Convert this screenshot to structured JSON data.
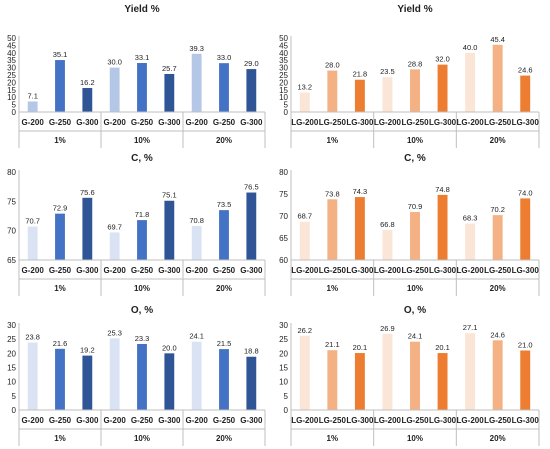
{
  "chart_data": [
    {
      "type": "bar",
      "title": "Yield %",
      "categories": [
        "G-200",
        "G-250",
        "G-300",
        "G-200",
        "G-250",
        "G-300",
        "G-200",
        "G-250",
        "G-300"
      ],
      "groups": [
        "1%",
        "10%",
        "20%"
      ],
      "values": [
        7.1,
        35.1,
        16.2,
        30.0,
        33.1,
        25.7,
        39.3,
        33.0,
        29.0
      ],
      "labels": [
        "7.1",
        "35.1",
        "16.2",
        "30.0",
        "33.1",
        "25.7",
        "39.3",
        "33.0",
        "29.0"
      ],
      "ylim": [
        0,
        50
      ],
      "yticks": [
        "0",
        "5",
        "10",
        "15",
        "20",
        "25",
        "30",
        "35",
        "40",
        "45",
        "50"
      ],
      "colors": [
        "#b4c7e7",
        "#4472c4",
        "#2f5597"
      ],
      "grid": false
    },
    {
      "type": "bar",
      "title": "Yield %",
      "categories": [
        "LG-200",
        "LG-250",
        "LG-300",
        "LG-200",
        "LG-250",
        "LG-300",
        "LG-200",
        "LG-250",
        "LG-300"
      ],
      "groups": [
        "1%",
        "10%",
        "20%"
      ],
      "values": [
        13.2,
        28.0,
        21.8,
        23.5,
        28.8,
        32.0,
        40.0,
        45.4,
        24.6
      ],
      "labels": [
        "13.2",
        "28.0",
        "21.8",
        "23.5",
        "28.8",
        "32.0",
        "40.0",
        "45.4",
        "24.6"
      ],
      "ylim": [
        0,
        50
      ],
      "yticks": [
        "0",
        "5",
        "10",
        "15",
        "20",
        "25",
        "30",
        "35",
        "40",
        "45",
        "50"
      ],
      "colors": [
        "#fbe5d6",
        "#f4b183",
        "#ed7d31"
      ],
      "grid": false
    },
    {
      "type": "bar",
      "title": "C, %",
      "categories": [
        "G-200",
        "G-250",
        "G-300",
        "G-200",
        "G-250",
        "G-300",
        "G-200",
        "G-250",
        "G-300"
      ],
      "groups": [
        "1%",
        "10%",
        "20%"
      ],
      "values": [
        70.7,
        72.9,
        75.6,
        69.7,
        71.8,
        75.1,
        70.8,
        73.5,
        76.5
      ],
      "labels": [
        "70.7",
        "72.9",
        "75.6",
        "69.7",
        "71.8",
        "75.1",
        "70.8",
        "73.5",
        "76.5"
      ],
      "ylim": [
        65,
        80
      ],
      "yticks": [
        "65",
        "70",
        "75",
        "80"
      ],
      "colors": [
        "#dae3f3",
        "#4472c4",
        "#2f5597"
      ],
      "grid": false
    },
    {
      "type": "bar",
      "title": "C, %",
      "categories": [
        "LG-200",
        "LG-250",
        "LG-300",
        "LG-200",
        "LG-250",
        "LG-300",
        "LG-200",
        "LG-250",
        "LG-300"
      ],
      "groups": [
        "1%",
        "10%",
        "20%"
      ],
      "values": [
        68.7,
        73.8,
        74.3,
        66.8,
        70.9,
        74.8,
        68.3,
        70.2,
        74.0
      ],
      "labels": [
        "68.7",
        "73.8",
        "74.3",
        "66.8",
        "70.9",
        "74.8",
        "68.3",
        "70.2",
        "74.0"
      ],
      "ylim": [
        60,
        80
      ],
      "yticks": [
        "60",
        "65",
        "70",
        "75",
        "80"
      ],
      "colors": [
        "#fbe5d6",
        "#f4b183",
        "#ed7d31"
      ],
      "grid": false
    },
    {
      "type": "bar",
      "title": "O, %",
      "categories": [
        "G-200",
        "G-250",
        "G-300",
        "G-200",
        "G-250",
        "G-300",
        "G-200",
        "G-250",
        "G-300"
      ],
      "groups": [
        "1%",
        "10%",
        "20%"
      ],
      "values": [
        23.8,
        21.6,
        19.2,
        25.3,
        23.3,
        20.0,
        24.1,
        21.5,
        18.8
      ],
      "labels": [
        "23.8",
        "21.6",
        "19.2",
        "25.3",
        "23.3",
        "20.0",
        "24.1",
        "21.5",
        "18.8"
      ],
      "ylim": [
        0,
        30
      ],
      "yticks": [
        "0",
        "5",
        "10",
        "15",
        "20",
        "25",
        "30"
      ],
      "colors": [
        "#dae3f3",
        "#4472c4",
        "#2f5597"
      ],
      "grid": false
    },
    {
      "type": "bar",
      "title": "O, %",
      "categories": [
        "LG-200",
        "LG-250",
        "LG-300",
        "LG-200",
        "LG-250",
        "LG-300",
        "LG-200",
        "LG-250",
        "LG-300"
      ],
      "groups": [
        "1%",
        "10%",
        "20%"
      ],
      "values": [
        26.2,
        21.1,
        20.1,
        26.9,
        24.1,
        20.1,
        27.1,
        24.6,
        21.0
      ],
      "labels": [
        "26.2",
        "21.1",
        "20.1",
        "26.9",
        "24.1",
        "20.1",
        "27.1",
        "24.6",
        "21.0"
      ],
      "ylim": [
        0,
        30
      ],
      "yticks": [
        "0",
        "5",
        "10",
        "15",
        "20",
        "25",
        "30"
      ],
      "colors": [
        "#fbe5d6",
        "#f4b183",
        "#ed7d31"
      ],
      "grid": false
    }
  ]
}
